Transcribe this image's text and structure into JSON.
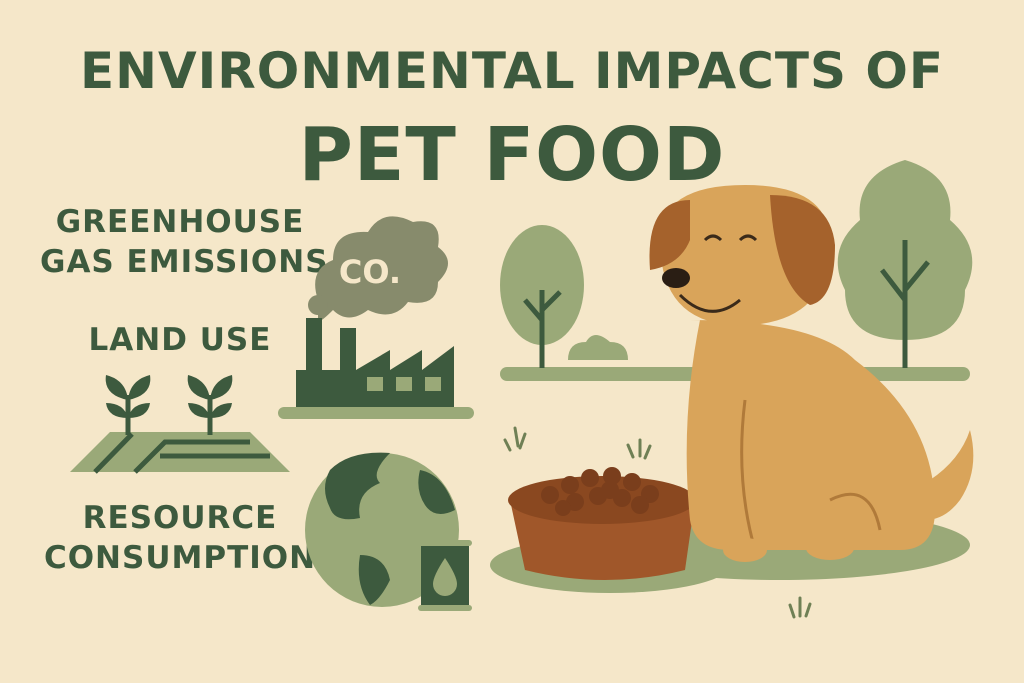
{
  "title": {
    "line1": "ENVIRONMENTAL IMPACTS OF",
    "line2": "PET FOOD"
  },
  "sections": [
    {
      "label_lines": [
        "GREENHOUSE",
        "GAS EMISSIONS"
      ],
      "icon": "factory-co2-icon",
      "cloud_text": "CO."
    },
    {
      "label_lines": [
        "LAND USE"
      ],
      "icon": "sprouting-field-icon"
    },
    {
      "label_lines": [
        "RESOURCE",
        "CONSUMPTION"
      ],
      "icon": "globe-oil-barrel-icon"
    }
  ],
  "colors": {
    "background": "#f5e7c9",
    "dark_green": "#3d5a3e",
    "sage": "#9aa978",
    "smoke": "#878b6c",
    "dog": "#d9a45a",
    "dog_ears": "#a5622c",
    "bowl": "#a0572a"
  }
}
